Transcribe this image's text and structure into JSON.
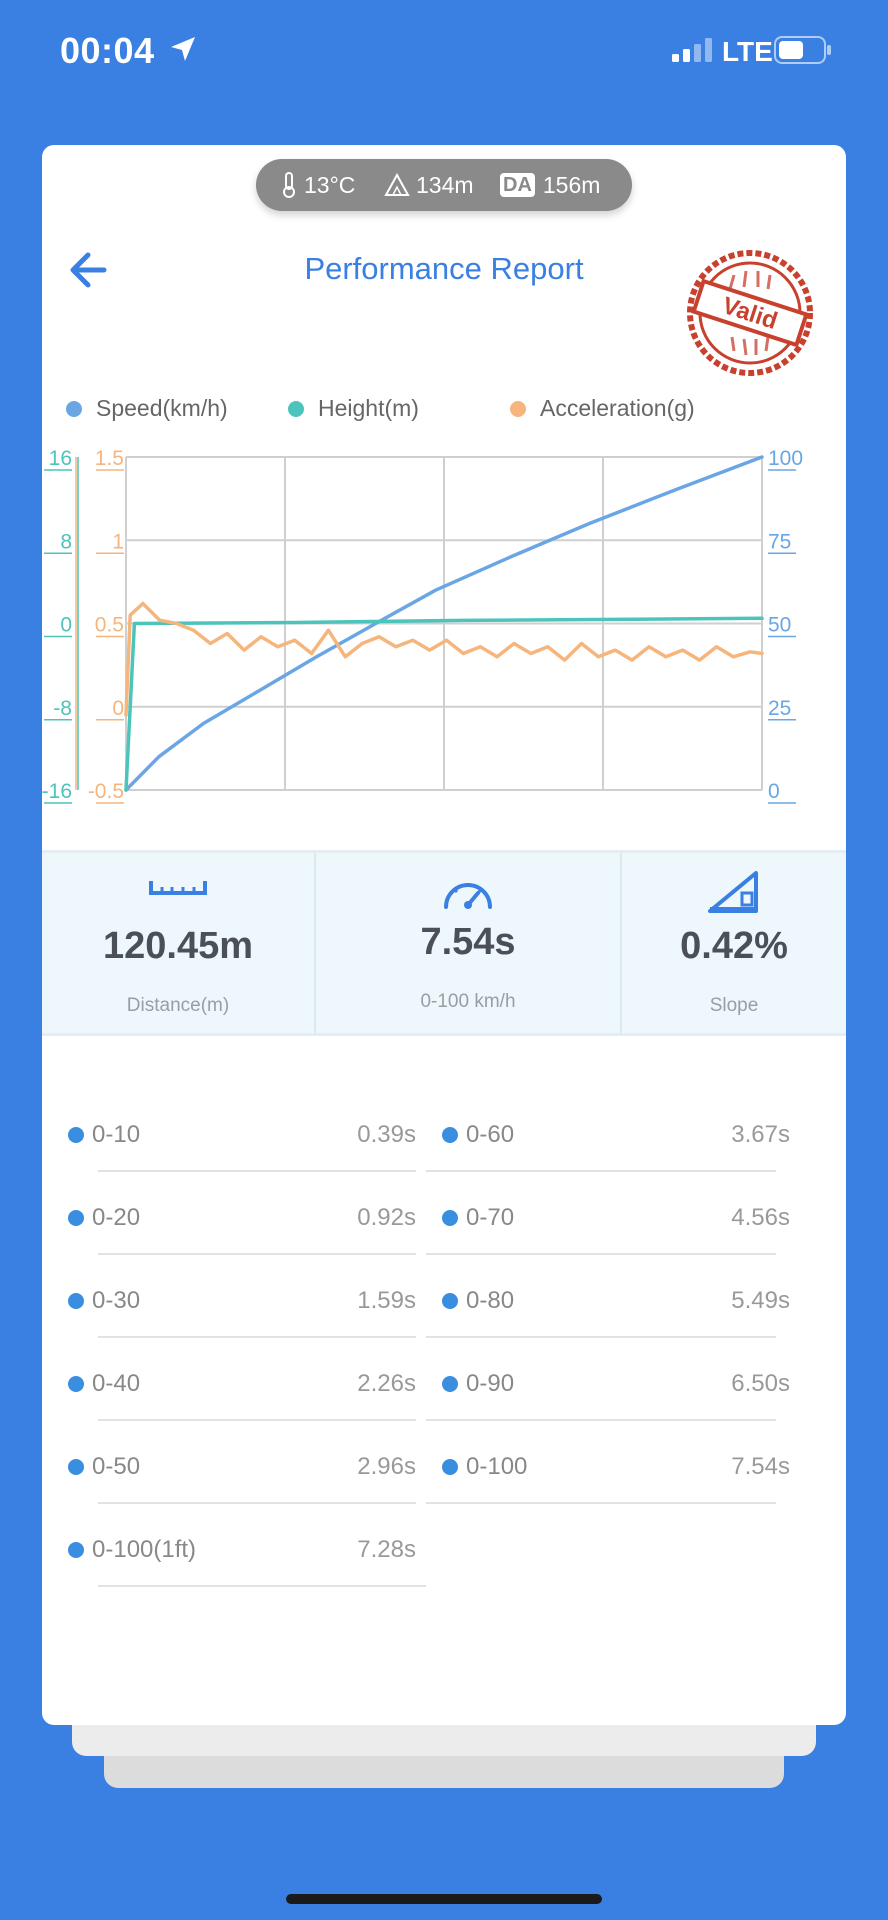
{
  "status_bar": {
    "time": "00:04",
    "network": "LTE"
  },
  "conditions": {
    "temperature": "13°C",
    "altitude": "134m",
    "da_badge": "DA",
    "density_altitude": "156m"
  },
  "header": {
    "title": "Performance Report",
    "stamp_text": "Valid"
  },
  "legend": [
    {
      "label": "Speed(km/h)",
      "color": "#6aa6e4"
    },
    {
      "label": "Height(m)",
      "color": "#4cc4bc"
    },
    {
      "label": "Acceleration(g)",
      "color": "#f5b57c"
    }
  ],
  "chart_data": {
    "type": "line",
    "x_axis": {
      "range": [
        0,
        7.54
      ],
      "unit": "s",
      "labels_shown": false
    },
    "y_axes": {
      "height_left": {
        "ticks": [
          "16",
          "8",
          "0",
          "-8",
          "-16"
        ],
        "range": [
          -16,
          16
        ],
        "color": "#4cc4bc"
      },
      "accel_left": {
        "ticks": [
          "1.5",
          "1",
          "0.5",
          "0",
          "-0.5"
        ],
        "range": [
          -0.5,
          1.5
        ],
        "color": "#f5b57c"
      },
      "speed_right": {
        "ticks": [
          "100",
          "75",
          "50",
          "25",
          "0"
        ],
        "range": [
          0,
          100
        ],
        "color": "#6aa6e4"
      }
    },
    "grid": true,
    "series": [
      {
        "name": "Speed(km/h)",
        "axis": "speed_right",
        "color": "#6aa6e4",
        "x": [
          0,
          0.39,
          0.92,
          1.59,
          2.26,
          2.96,
          3.67,
          4.56,
          5.49,
          6.5,
          7.54
        ],
        "y": [
          0,
          10,
          20,
          30,
          40,
          50,
          60,
          70,
          80,
          90,
          100
        ]
      },
      {
        "name": "Height(m)",
        "axis": "height_left",
        "color": "#4cc4bc",
        "x": [
          0,
          0.1,
          2.0,
          4.0,
          6.0,
          7.54
        ],
        "y": [
          -16,
          0,
          0.1,
          0.3,
          0.4,
          0.5
        ]
      },
      {
        "name": "Acceleration(g)",
        "axis": "accel_left",
        "color": "#f5b57c",
        "x": [
          0,
          0.05,
          0.2,
          0.4,
          0.6,
          0.8,
          1.0,
          1.2,
          1.4,
          1.6,
          1.8,
          2.0,
          2.2,
          2.4,
          2.6,
          2.8,
          3.0,
          3.2,
          3.4,
          3.6,
          3.8,
          4.0,
          4.2,
          4.4,
          4.6,
          4.8,
          5.0,
          5.2,
          5.4,
          5.6,
          5.8,
          6.0,
          6.2,
          6.4,
          6.6,
          6.8,
          7.0,
          7.2,
          7.4,
          7.54
        ],
        "y": [
          -0.05,
          0.55,
          0.62,
          0.52,
          0.5,
          0.46,
          0.38,
          0.44,
          0.34,
          0.42,
          0.36,
          0.4,
          0.32,
          0.46,
          0.3,
          0.38,
          0.42,
          0.36,
          0.4,
          0.34,
          0.4,
          0.32,
          0.36,
          0.3,
          0.38,
          0.32,
          0.36,
          0.28,
          0.38,
          0.3,
          0.34,
          0.28,
          0.36,
          0.3,
          0.34,
          0.28,
          0.36,
          0.3,
          0.33,
          0.32
        ]
      }
    ]
  },
  "stats": [
    {
      "icon": "ruler-icon",
      "value": "120.45m",
      "label": "Distance(m)"
    },
    {
      "icon": "speedometer-icon",
      "value": "7.54s",
      "label": "0-100 km/h"
    },
    {
      "icon": "slope-icon",
      "value": "0.42%",
      "label": "Slope"
    }
  ],
  "splits": {
    "left": [
      {
        "label": "0-10",
        "time": "0.39s"
      },
      {
        "label": "0-20",
        "time": "0.92s"
      },
      {
        "label": "0-30",
        "time": "1.59s"
      },
      {
        "label": "0-40",
        "time": "2.26s"
      },
      {
        "label": "0-50",
        "time": "2.96s"
      },
      {
        "label": "0-100(1ft)",
        "time": "7.28s"
      }
    ],
    "right": [
      {
        "label": "0-60",
        "time": "3.67s"
      },
      {
        "label": "0-70",
        "time": "4.56s"
      },
      {
        "label": "0-80",
        "time": "5.49s"
      },
      {
        "label": "0-90",
        "time": "6.50s"
      },
      {
        "label": "0-100",
        "time": "7.54s"
      }
    ]
  },
  "colors": {
    "background": "#3a80e2",
    "accent": "#3a80e2",
    "stamp": "#c8402e"
  }
}
